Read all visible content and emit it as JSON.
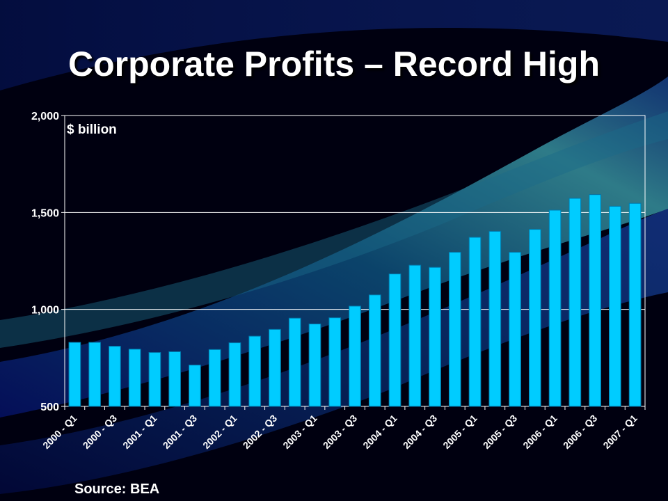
{
  "slide": {
    "title": "Corporate Profits – Record High",
    "source": "Source: BEA"
  },
  "colors": {
    "bar_fill": "#00ccff",
    "bar_stroke": "#0077aa",
    "text": "#ffffff",
    "gridline": "#ffffff",
    "background": "#000010"
  },
  "chart_data": {
    "type": "bar",
    "ylabel": "$ billion",
    "xlabel": "",
    "ylim": [
      500,
      2000
    ],
    "yticks": [
      500,
      1000,
      1500,
      2000
    ],
    "ytick_labels": [
      "500",
      "1,000",
      "1,500",
      "2,000"
    ],
    "grid": true,
    "categories": [
      "2000 - Q1",
      "2000 - Q2",
      "2000 - Q3",
      "2000 - Q4",
      "2001 - Q1",
      "2001 - Q2",
      "2001 - Q3",
      "2001 - Q4",
      "2002 - Q1",
      "2002 - Q2",
      "2002 - Q3",
      "2002 - Q4",
      "2003 - Q1",
      "2003 - Q2",
      "2003 - Q3",
      "2003 - Q4",
      "2004 - Q1",
      "2004 - Q2",
      "2004 - Q3",
      "2004 - Q4",
      "2005 - Q1",
      "2005 - Q2",
      "2005 - Q3",
      "2005 - Q4",
      "2006 - Q1",
      "2006 - Q2",
      "2006 - Q3",
      "2006 - Q4",
      "2007 - Q1"
    ],
    "xtick_labels_shown": [
      "2000 - Q1",
      "2000 - Q3",
      "2001 - Q1",
      "2001 - Q3",
      "2002 - Q1",
      "2002 - Q3",
      "2003 - Q1",
      "2003 - Q3",
      "2004 - Q1",
      "2004 - Q3",
      "2005 - Q1",
      "2005 - Q3",
      "2006 - Q1",
      "2006 - Q3",
      "2007 - Q1"
    ],
    "values": [
      830,
      830,
      810,
      795,
      778,
      782,
      713,
      793,
      828,
      862,
      897,
      955,
      925,
      957,
      1017,
      1075,
      1183,
      1228,
      1217,
      1295,
      1372,
      1403,
      1295,
      1413,
      1512,
      1573,
      1592,
      1532,
      1547
    ]
  }
}
